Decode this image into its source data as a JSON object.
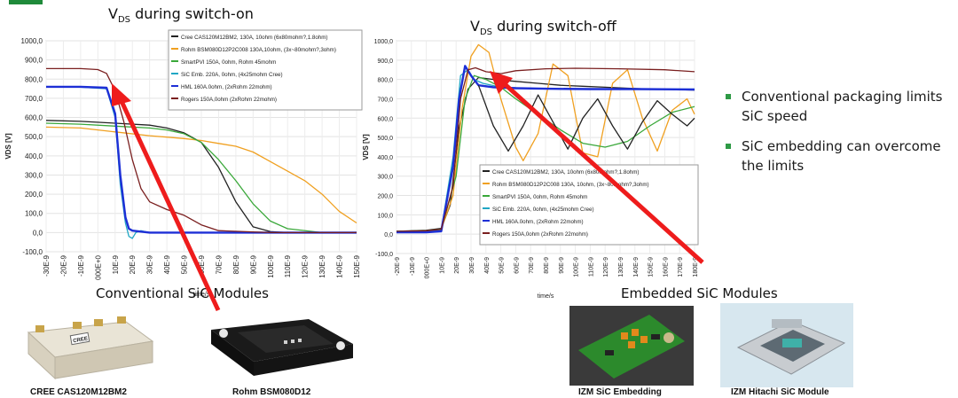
{
  "colors": {
    "cree": "#222222",
    "rohm": "#f0a020",
    "smartpvi": "#3aa83a",
    "sic_emb": "#1fa6c4",
    "hml": "#1d2fd6",
    "rogers": "#7a1f1f",
    "arrow": "#ee1c1c",
    "bullet": "#2e9a45"
  },
  "titles": {
    "left_main": "V",
    "left_sub": "DS",
    "left_rest": " during switch-on",
    "right_main": "V",
    "right_sub": "DS",
    "right_rest": " during switch-off"
  },
  "bullets": [
    "Conventional packaging limits SiC speed",
    "SiC embedding can overcome the limits"
  ],
  "sections": {
    "conventional": "Conventional SiC Modules",
    "embedded": "Embedded SiC Modules"
  },
  "captions": {
    "cree": "CREE CAS120M12BM2",
    "rohm": "Rohm BSM080D12",
    "izm_emb": "IZM SiC Embedding",
    "izm_hitachi": "IZM Hitachi SiC Module"
  },
  "product_labels": {
    "cree_logo": "CREE"
  },
  "chart_data": [
    {
      "type": "line",
      "title": "VDS during switch-on",
      "xlabel": "time/s",
      "ylabel": "VDS [V]",
      "xlim": [
        -3e-08,
        1.5e-07
      ],
      "ylim": [
        -100,
        1000
      ],
      "x_ticks": [
        "-30E-9",
        "-20E-9",
        "-10E-9",
        "000E+0",
        "10E-9",
        "20E-9",
        "30E-9",
        "40E-9",
        "50E-9",
        "60E-9",
        "70E-9",
        "80E-9",
        "90E-9",
        "100E-9",
        "110E-9",
        "120E-9",
        "130E-9",
        "140E-9",
        "150E-9"
      ],
      "y_ticks": [
        "1000,0",
        "900,0",
        "800,0",
        "700,0",
        "600,0",
        "500,0",
        "400,0",
        "300,0",
        "200,0",
        "100,0",
        "0,0",
        "-100,0"
      ],
      "legend_position": "top-right",
      "series": [
        {
          "name": "Cree CAS120M12BM2, 130A, 10ohm (6x80mohm?,1.8ohm)",
          "color_key": "cree",
          "x": [
            -3e-08,
            -1e-08,
            1e-08,
            3e-08,
            4e-08,
            5e-08,
            6e-08,
            7e-08,
            8e-08,
            9e-08,
            1e-07,
            1.1e-07,
            1.3e-07,
            1.5e-07
          ],
          "y": [
            585,
            580,
            570,
            560,
            545,
            520,
            470,
            340,
            160,
            30,
            5,
            0,
            0,
            0
          ]
        },
        {
          "name": "Rohm BSM080D12P2C008 130A,10ohm, (3x~80mohm?,3ohm)",
          "color_key": "rohm",
          "x": [
            -3e-08,
            -1e-08,
            1e-08,
            3e-08,
            5e-08,
            6e-08,
            7e-08,
            8e-08,
            9e-08,
            1e-07,
            1.1e-07,
            1.2e-07,
            1.3e-07,
            1.4e-07,
            1.5e-07
          ],
          "y": [
            550,
            545,
            525,
            505,
            490,
            480,
            465,
            450,
            420,
            370,
            320,
            270,
            200,
            110,
            50
          ]
        },
        {
          "name": "SmartPVI 150A, 0ohm, Rohm 45mohm",
          "color_key": "smartpvi",
          "x": [
            -3e-08,
            -1e-08,
            1e-08,
            3e-08,
            4e-08,
            5e-08,
            6e-08,
            7e-08,
            8e-08,
            9e-08,
            1e-07,
            1.1e-07,
            1.3e-07,
            1.5e-07
          ],
          "y": [
            570,
            565,
            555,
            545,
            535,
            515,
            470,
            380,
            270,
            150,
            60,
            20,
            0,
            0
          ]
        },
        {
          "name": "SiC Emb. 220A, 0ohm, (4x25mohm Cree)",
          "color_key": "sic_emb",
          "x": [
            -3e-08,
            -1e-08,
            5e-09,
            1e-08,
            1.3e-08,
            1.6e-08,
            1.8e-08,
            2e-08,
            2.2e-08,
            2.5e-08,
            3e-08,
            5e-08,
            1e-07,
            1.5e-07
          ],
          "y": [
            760,
            758,
            750,
            600,
            250,
            50,
            -20,
            -30,
            0,
            10,
            0,
            0,
            0,
            0
          ]
        },
        {
          "name": "HML 160A.0ohm, (2xRohm 22mohm)",
          "color_key": "hml",
          "x": [
            -3e-08,
            -1e-08,
            5e-09,
            1e-08,
            1.3e-08,
            1.6e-08,
            1.8e-08,
            2e-08,
            2.5e-08,
            3e-08,
            5e-08,
            1e-07,
            1.5e-07
          ],
          "y": [
            760,
            760,
            755,
            620,
            300,
            80,
            20,
            10,
            5,
            0,
            0,
            0,
            0
          ]
        },
        {
          "name": "Rogers 150A,0ohm (2xRohm 22mohm)",
          "color_key": "rogers",
          "x": [
            -3e-08,
            -1e-08,
            0,
            5e-09,
            1e-08,
            1.5e-08,
            2e-08,
            2.5e-08,
            3e-08,
            4e-08,
            5e-08,
            6e-08,
            7e-08,
            1e-07,
            1.5e-07
          ],
          "y": [
            855,
            855,
            850,
            830,
            740,
            580,
            380,
            230,
            160,
            120,
            90,
            40,
            10,
            0,
            0
          ]
        }
      ]
    },
    {
      "type": "line",
      "title": "VDS during switch-off",
      "xlabel": "time/s",
      "ylabel": "VDS [V]",
      "xlim": [
        -2e-08,
        1.8e-07
      ],
      "ylim": [
        -100,
        1000
      ],
      "x_ticks": [
        "-20E-9",
        "-10E-9",
        "000E+0",
        "10E-9",
        "20E-9",
        "30E-9",
        "40E-9",
        "50E-9",
        "60E-9",
        "70E-9",
        "80E-9",
        "90E-9",
        "100E-9",
        "110E-9",
        "120E-9",
        "130E-9",
        "140E-9",
        "150E-9",
        "160E-9",
        "170E-9",
        "180E-9"
      ],
      "y_ticks": [
        "1000,0",
        "900,0",
        "800,0",
        "700,0",
        "600,0",
        "500,0",
        "400,0",
        "300,0",
        "200,0",
        "100,0",
        "0,0",
        "-100,0"
      ],
      "legend_position": "bottom-right",
      "series": [
        {
          "name": "Cree CAS120M12BM2, 130A, 10ohm (6x80mohm?,1.8ohm)",
          "color_key": "cree",
          "x": [
            -2e-08,
            0,
            1e-08,
            1.6e-08,
            2.2e-08,
            2.8e-08,
            3.5e-08,
            4.5e-08,
            6e-08,
            7.5e-08,
            9e-08,
            1.05e-07,
            1.2e-07,
            1.35e-07,
            1.5e-07,
            1.65e-07,
            1.8e-07
          ],
          "y": [
            15,
            20,
            30,
            150,
            550,
            750,
            810,
            800,
            790,
            780,
            770,
            765,
            760,
            755,
            750,
            748,
            745
          ]
        },
        {
          "name": "Rohm BSM080D12P2C008 130A, 10ohm, (3x~80mohm?,3ohm)",
          "color_key": "rohm",
          "x": [
            -2e-08,
            0,
            1e-08,
            1.8e-08,
            2.4e-08,
            3e-08,
            3.5e-08,
            4.2e-08,
            5e-08,
            6e-08,
            6.5e-08,
            7.5e-08,
            8.5e-08,
            9.5e-08,
            1.05e-07,
            1.15e-07,
            1.25e-07,
            1.35e-07,
            1.45e-07,
            1.55e-07,
            1.65e-07,
            1.75e-07,
            1.8e-07
          ],
          "y": [
            10,
            15,
            25,
            200,
            650,
            920,
            980,
            940,
            700,
            450,
            380,
            520,
            880,
            820,
            420,
            400,
            780,
            850,
            600,
            430,
            640,
            700,
            620
          ]
        },
        {
          "name": "SmartPVI 150A, 0ohm, Rohm 45mohm",
          "color_key": "smartpvi",
          "x": [
            -2e-08,
            0,
            1e-08,
            2e-08,
            2.6e-08,
            3.2e-08,
            4e-08,
            5e-08,
            6e-08,
            7.5e-08,
            9e-08,
            1.05e-07,
            1.2e-07,
            1.35e-07,
            1.5e-07,
            1.65e-07,
            1.8e-07
          ],
          "y": [
            15,
            18,
            25,
            300,
            700,
            820,
            800,
            760,
            700,
            620,
            540,
            470,
            450,
            480,
            560,
            630,
            660
          ]
        },
        {
          "name": "SiC Emb. 220A, 0ohm, (4x25mohm Cree)",
          "color_key": "sic_emb",
          "x": [
            -2e-08,
            0,
            1e-08,
            1.8e-08,
            2.3e-08,
            2.8e-08,
            3.2e-08,
            3.8e-08,
            5e-08,
            7e-08,
            1e-07,
            1.4e-07,
            1.8e-07
          ],
          "y": [
            15,
            15,
            20,
            400,
            820,
            850,
            800,
            780,
            760,
            755,
            750,
            750,
            750
          ]
        },
        {
          "name": "HML 160A.0ohm, (2xRohm 22mohm)",
          "color_key": "hml",
          "x": [
            -2e-08,
            0,
            1e-08,
            1.8e-08,
            2.2e-08,
            2.6e-08,
            3e-08,
            3.5e-08,
            4.5e-08,
            6e-08,
            8e-08,
            1.1e-07,
            1.4e-07,
            1.8e-07
          ],
          "y": [
            10,
            10,
            15,
            350,
            700,
            870,
            820,
            770,
            760,
            755,
            752,
            750,
            750,
            748
          ]
        },
        {
          "name": "Rogers 150A,0ohm (2xRohm 22mohm)",
          "color_key": "rogers",
          "x": [
            -2e-08,
            0,
            1e-08,
            1.8e-08,
            2.3e-08,
            2.8e-08,
            3.3e-08,
            4e-08,
            5e-08,
            6e-08,
            8e-08,
            1e-07,
            1.3e-07,
            1.6e-07,
            1.8e-07
          ],
          "y": [
            15,
            18,
            25,
            250,
            700,
            850,
            860,
            840,
            830,
            845,
            855,
            858,
            855,
            850,
            840
          ]
        },
        {
          "name": "",
          "color_key": "cree",
          "x": [
            3.5e-08,
            4.5e-08,
            5.5e-08,
            6.5e-08,
            7.5e-08,
            8.5e-08,
            9.5e-08,
            1.05e-07,
            1.15e-07,
            1.25e-07,
            1.35e-07,
            1.45e-07,
            1.55e-07,
            1.65e-07,
            1.75e-07,
            1.8e-07
          ],
          "y": [
            770,
            560,
            430,
            560,
            720,
            580,
            440,
            600,
            700,
            560,
            440,
            580,
            690,
            620,
            560,
            600
          ]
        }
      ]
    }
  ]
}
